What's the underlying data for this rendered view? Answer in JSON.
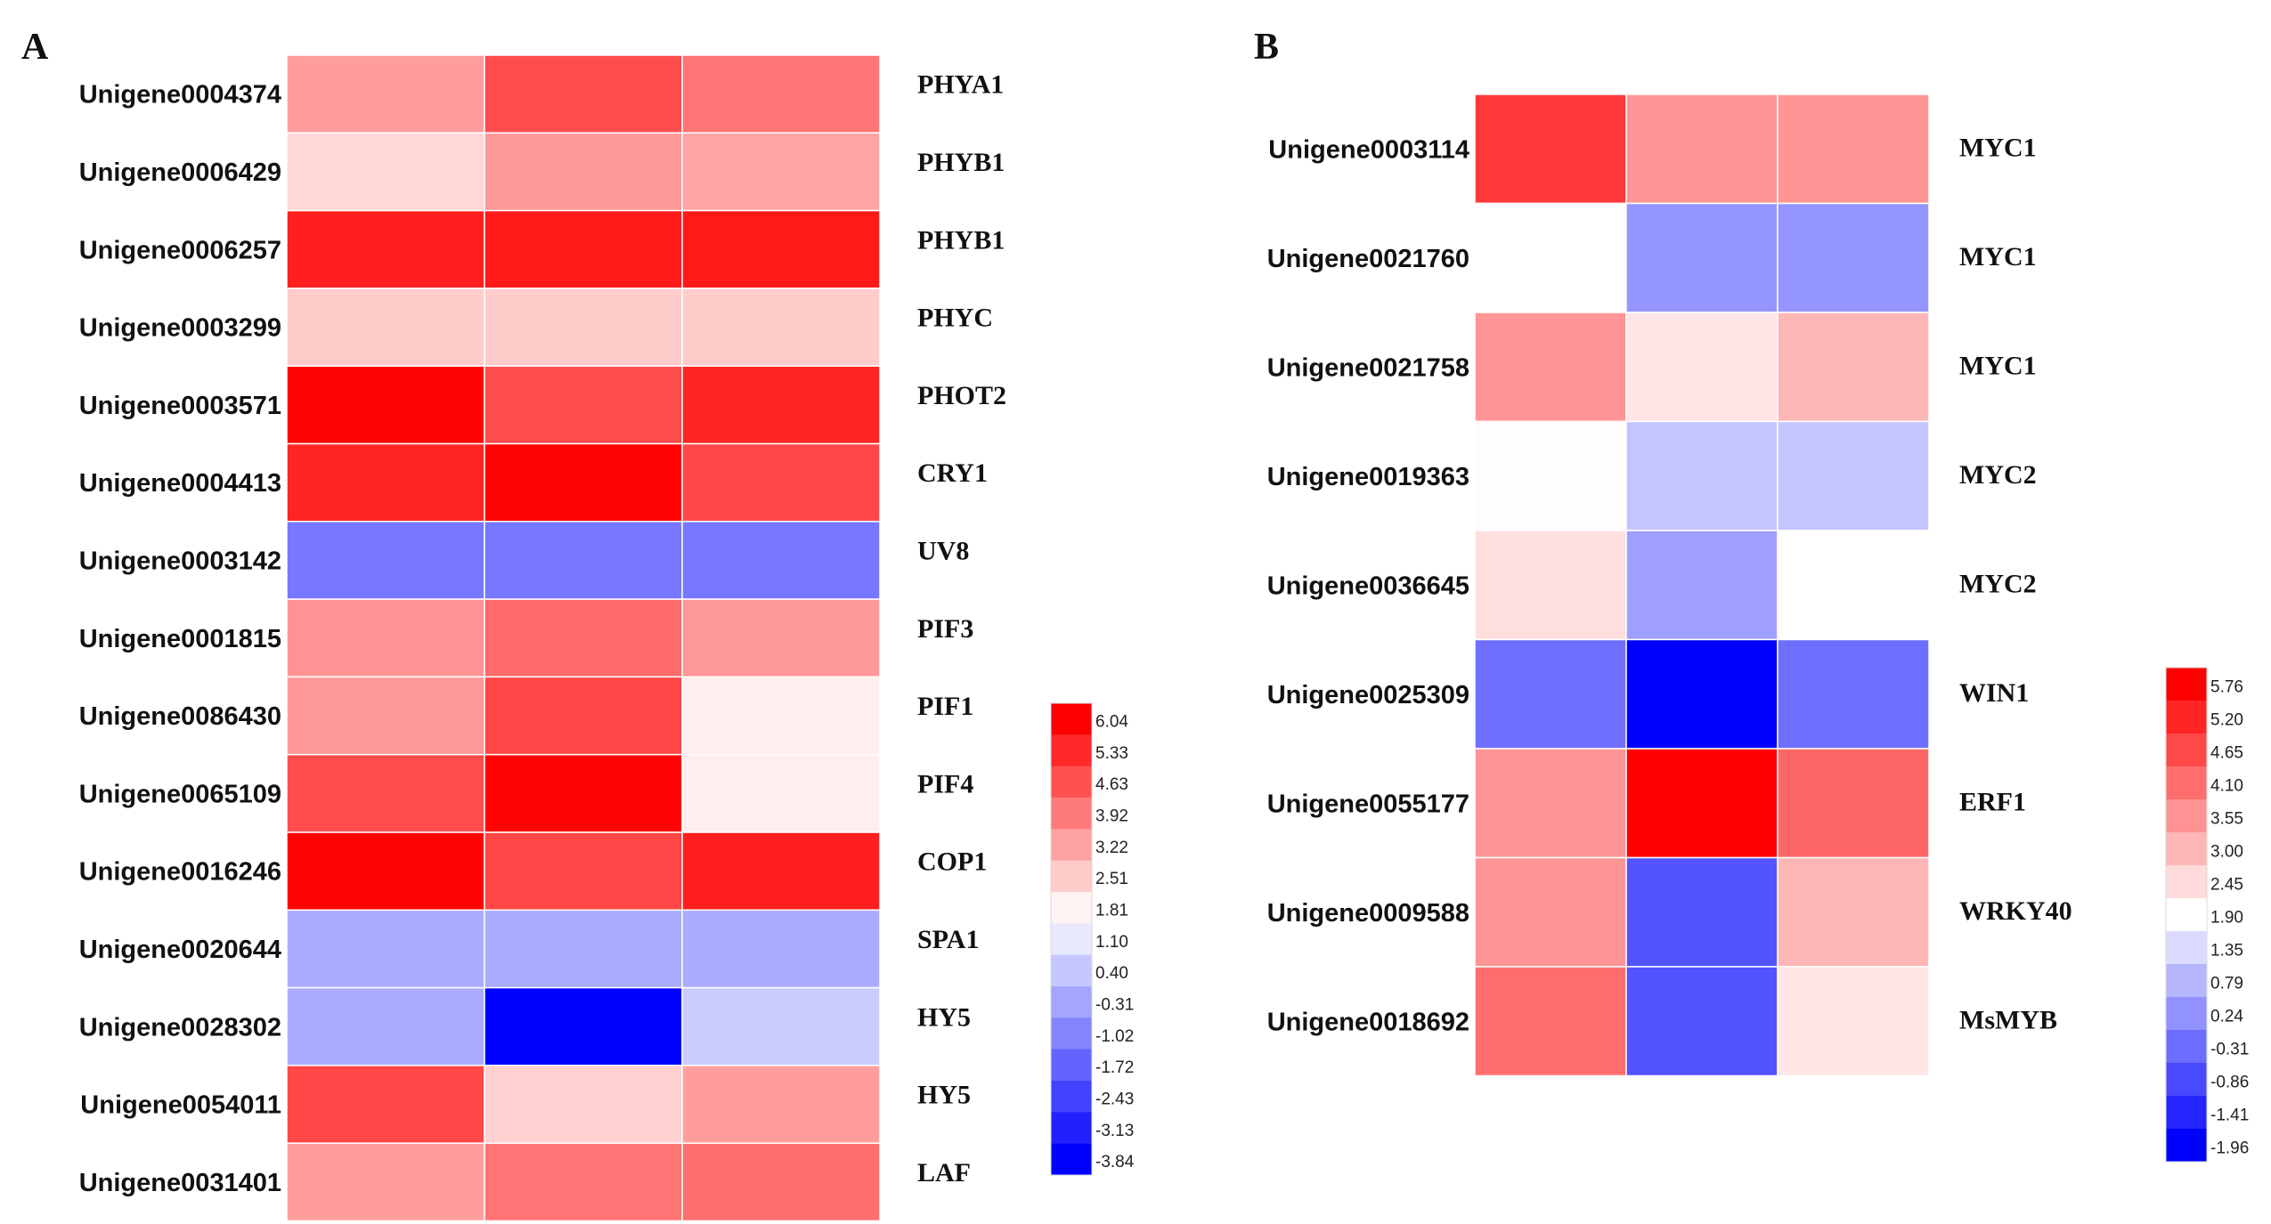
{
  "chart_data": [
    {
      "type": "heatmap",
      "panel": "A",
      "rows": [
        "Unigene0004374",
        "Unigene0006429",
        "Unigene0006257",
        "Unigene0003299",
        "Unigene0003571",
        "Unigene0004413",
        "Unigene0003142",
        "Unigene0001815",
        "Unigene0086430",
        "Unigene0065109",
        "Unigene0016246",
        "Unigene0020644",
        "Unigene0028302",
        "Unigene0054011",
        "Unigene0031401"
      ],
      "genes": [
        "PHYA1",
        "PHYB1",
        "PHYB1",
        "PHYC",
        "PHOT2",
        "CRY1",
        "UV8",
        "PIF3",
        "PIF1",
        "PIF4",
        "COP1",
        "SPA1",
        "HY5",
        "HY5",
        "LAF"
      ],
      "values": [
        [
          3.3,
          4.7,
          4.0
        ],
        [
          2.3,
          3.4,
          3.2
        ],
        [
          5.5,
          5.6,
          5.6
        ],
        [
          2.5,
          2.5,
          2.5
        ],
        [
          6.0,
          4.7,
          5.4
        ],
        [
          5.4,
          6.0,
          4.8
        ],
        [
          -1.3,
          -1.3,
          -1.3
        ],
        [
          3.5,
          4.2,
          3.4
        ],
        [
          3.4,
          4.8,
          1.9
        ],
        [
          4.7,
          6.0,
          1.9
        ],
        [
          6.0,
          4.8,
          5.5
        ],
        [
          -0.2,
          -0.2,
          -0.2
        ],
        [
          -0.2,
          -3.84,
          0.5
        ],
        [
          4.8,
          2.4,
          3.3
        ],
        [
          3.3,
          4.0,
          4.1
        ]
      ],
      "legend": {
        "ticks": [
          "6.04",
          "5.33",
          "4.63",
          "3.92",
          "3.22",
          "2.51",
          "1.81",
          "1.10",
          "0.40",
          "-0.31",
          "-1.02",
          "-1.72",
          "-2.43",
          "-3.13",
          "-3.84"
        ],
        "range": [
          -3.84,
          6.04
        ]
      },
      "colors": {
        "high": "#ff0000",
        "mid": "#ffffff",
        "low": "#0000ff"
      }
    },
    {
      "type": "heatmap",
      "panel": "B",
      "rows": [
        "Unigene0003114",
        "Unigene0021760",
        "Unigene0021758",
        "Unigene0019363",
        "Unigene0036645",
        "Unigene0025309",
        "Unigene0055177",
        "Unigene0009588",
        "Unigene0018692"
      ],
      "genes": [
        "MYC1",
        "MYC1",
        "MYC1",
        "MYC2",
        "MYC2",
        "WIN1",
        "ERF1",
        "WRKY40",
        "MsMYB"
      ],
      "values": [
        [
          4.9,
          3.5,
          3.5
        ],
        [
          1.9,
          0.3,
          0.3
        ],
        [
          3.5,
          2.3,
          3.0
        ],
        [
          1.95,
          1.0,
          1.0
        ],
        [
          2.4,
          0.45,
          1.9
        ],
        [
          -0.3,
          -1.96,
          -0.3
        ],
        [
          3.5,
          5.76,
          4.2
        ],
        [
          3.5,
          -0.7,
          3.0
        ],
        [
          4.1,
          -0.7,
          2.3
        ]
      ],
      "legend": {
        "ticks": [
          "5.76",
          "5.20",
          "4.65",
          "4.10",
          "3.55",
          "3.00",
          "2.45",
          "1.90",
          "1.35",
          "0.79",
          "0.24",
          "-0.31",
          "-0.86",
          "-1.41",
          "-1.96"
        ],
        "range": [
          -1.96,
          5.76
        ]
      },
      "colors": {
        "high": "#ff0000",
        "mid": "#ffffff",
        "low": "#0000ff"
      }
    }
  ],
  "labels": {
    "panel_a": "A",
    "panel_b": "B"
  }
}
